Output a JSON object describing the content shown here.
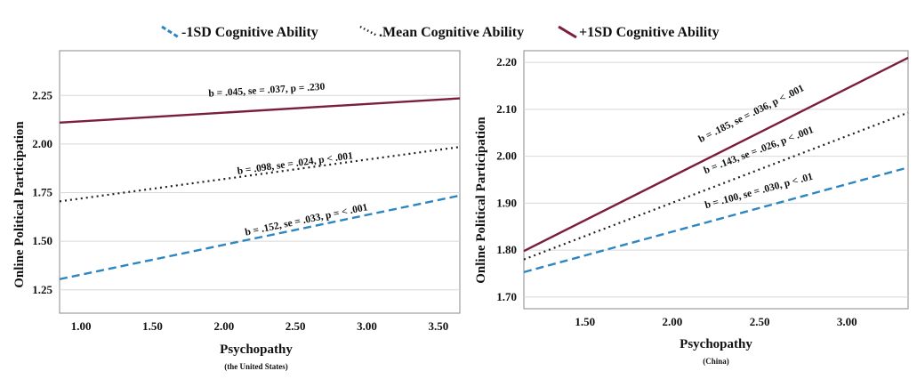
{
  "chart_data": {
    "legend": [
      {
        "name": "-1SD Cognitive Ability",
        "color": "#2e86c1",
        "dash": "dashed"
      },
      {
        "name": ".Mean Cognitive Ability",
        "color": "#222222",
        "dash": "dotted"
      },
      {
        "name": "+1SD Cognitive Ability",
        "color": "#7b1e3a",
        "dash": "solid"
      }
    ],
    "panels": [
      {
        "type": "line",
        "xlabel": "Psychopathy",
        "subtitle": "(the United States)",
        "ylabel": "Online   Political   Participation",
        "xlim": [
          0.85,
          3.65
        ],
        "ylim": [
          1.13,
          2.48
        ],
        "xticks": [
          "1.00",
          "1.50",
          "2.00",
          "2.50",
          "3.00",
          "3.50"
        ],
        "xtick_values": [
          1.0,
          1.5,
          2.0,
          2.5,
          3.0,
          3.5
        ],
        "yticks": [
          "1.25",
          "1.50",
          "1.75",
          "2.00",
          "2.25"
        ],
        "ytick_values": [
          1.25,
          1.5,
          1.75,
          2.0,
          2.25
        ],
        "gridlines": true,
        "series": [
          {
            "name": "+1SD Cognitive Ability",
            "x": [
              0.85,
              3.65
            ],
            "y": [
              2.11,
              2.235
            ],
            "annotation": "b =  .045, se = .037, p = .230",
            "anno_at": [
              2.3,
              2.262
            ],
            "slope_sign": 1
          },
          {
            "name": ".Mean Cognitive Ability",
            "x": [
              0.85,
              3.65
            ],
            "y": [
              1.705,
              1.985
            ],
            "annotation": "b =  .098, se = .024, p < .001",
            "anno_at": [
              2.5,
              1.885
            ],
            "slope_sign": 1
          },
          {
            "name": "-1SD Cognitive Ability",
            "x": [
              0.85,
              3.65
            ],
            "y": [
              1.305,
              1.735
            ],
            "annotation": "b =  .152, se = .033, p = < .001",
            "anno_at": [
              2.58,
              1.595
            ],
            "slope_sign": 1
          }
        ]
      },
      {
        "type": "line",
        "xlabel": "Psychopathy",
        "subtitle": "(China)",
        "ylabel": "Online   Political   Participation",
        "xlim": [
          1.15,
          3.35
        ],
        "ylim": [
          1.675,
          2.225
        ],
        "xticks": [
          "1.50",
          "2.00",
          "2.50",
          "3.00"
        ],
        "xtick_values": [
          1.5,
          2.0,
          2.5,
          3.0
        ],
        "yticks": [
          "1.70",
          "1.80",
          "1.90",
          "2.00",
          "2.10",
          "2.20"
        ],
        "ytick_values": [
          1.7,
          1.8,
          1.9,
          2.0,
          2.1,
          2.2
        ],
        "gridlines": true,
        "series": [
          {
            "name": "+1SD Cognitive Ability",
            "x": [
              1.15,
              3.35
            ],
            "y": [
              1.798,
              2.21
            ],
            "annotation": "b =  .185, se = .036, p < .001",
            "anno_at": [
              2.46,
              2.085
            ],
            "slope_sign": 1
          },
          {
            "name": ".Mean Cognitive Ability",
            "x": [
              1.15,
              3.35
            ],
            "y": [
              1.78,
              2.093
            ],
            "annotation": "b =  .143, se = .026, p < .001",
            "anno_at": [
              2.5,
              2.007
            ],
            "slope_sign": 1
          },
          {
            "name": "-1SD Cognitive Ability",
            "x": [
              1.15,
              3.35
            ],
            "y": [
              1.753,
              1.976
            ],
            "annotation": "b =  .100, se = .030, p < .01",
            "anno_at": [
              2.5,
              1.92
            ],
            "slope_sign": 1
          }
        ]
      }
    ]
  }
}
